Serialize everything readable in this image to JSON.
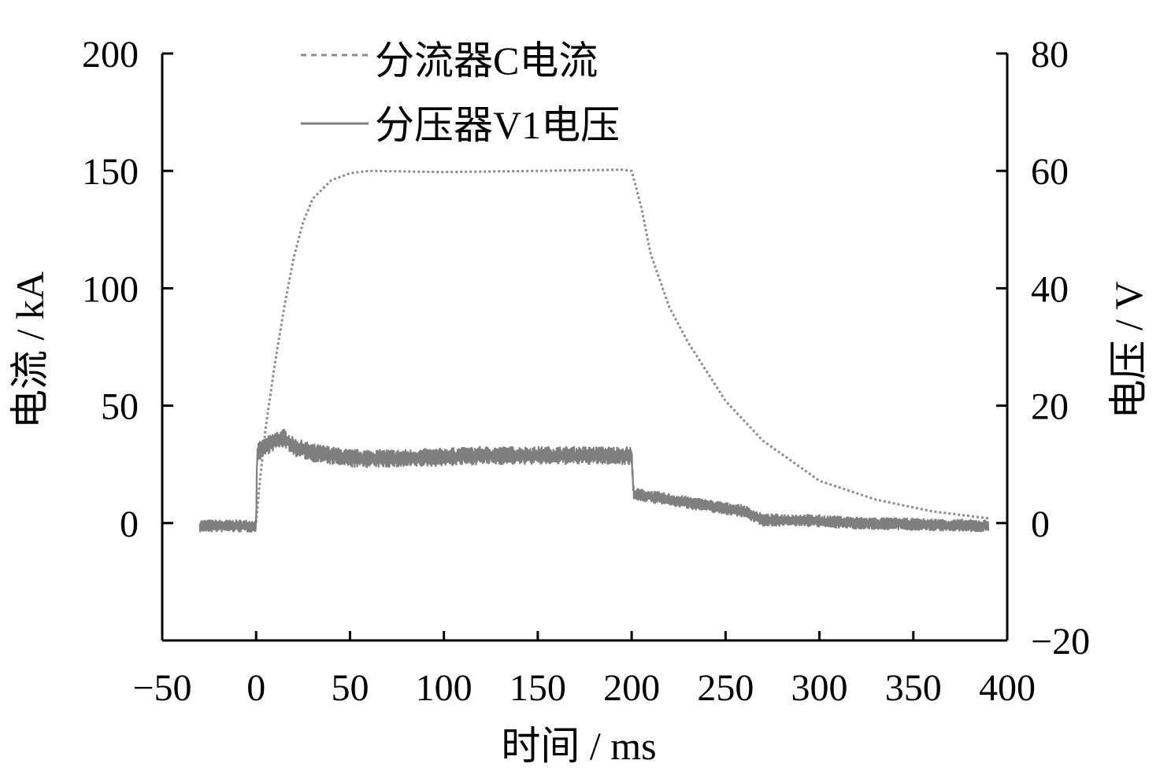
{
  "chart_data": {
    "type": "line",
    "xlabel": "时间 / ms",
    "ylabel_left": "电流 / kA",
    "ylabel_right": "电压 / V",
    "xlim": [
      -50,
      400
    ],
    "ylim_left": [
      -50,
      200
    ],
    "ylim_right": [
      -20,
      80
    ],
    "x_ticks": [
      -50,
      0,
      50,
      100,
      150,
      200,
      250,
      300,
      350,
      400
    ],
    "x_tick_labels": [
      "−50",
      "0",
      "50",
      "100",
      "150",
      "200",
      "250",
      "300",
      "350",
      "400"
    ],
    "y_left_ticks": [
      0,
      50,
      100,
      150,
      200
    ],
    "y_left_tick_labels": [
      "0",
      "50",
      "100",
      "150",
      "200"
    ],
    "y_right_ticks": [
      -20,
      0,
      20,
      40,
      60,
      80
    ],
    "y_right_tick_labels": [
      "−20",
      "0",
      "20",
      "40",
      "60",
      "80"
    ],
    "grid": false,
    "legend_position": "top-left",
    "series": [
      {
        "name": "分流器C电流",
        "axis": "left",
        "style": "dotted",
        "color": "#8c8c8c",
        "x": [
          -30,
          -5,
          0,
          2,
          5,
          10,
          15,
          20,
          25,
          30,
          40,
          50,
          60,
          100,
          150,
          195,
          200,
          205,
          210,
          220,
          230,
          250,
          270,
          300,
          330,
          360,
          390
        ],
        "y": [
          0,
          0,
          0,
          18,
          40,
          68,
          92,
          113,
          128,
          138,
          146,
          149,
          150,
          149.5,
          150,
          150.5,
          150,
          135,
          115,
          92,
          77,
          52,
          35,
          18,
          10,
          5,
          2
        ]
      },
      {
        "name": "分压器V1电压",
        "axis": "right",
        "style": "solid-noisy",
        "color": "#7f7f7f",
        "x": [
          -30,
          0,
          0.5,
          5,
          10,
          15,
          20,
          30,
          50,
          80,
          120,
          160,
          200,
          201,
          210,
          230,
          260,
          270,
          290,
          320,
          360,
          390
        ],
        "y": [
          -0.5,
          -0.5,
          12,
          13,
          14,
          14.5,
          13,
          12,
          11,
          11,
          11.5,
          11.5,
          11.5,
          5,
          4.5,
          3.5,
          2,
          0.5,
          0.5,
          0,
          -0.3,
          -0.5
        ]
      }
    ]
  }
}
